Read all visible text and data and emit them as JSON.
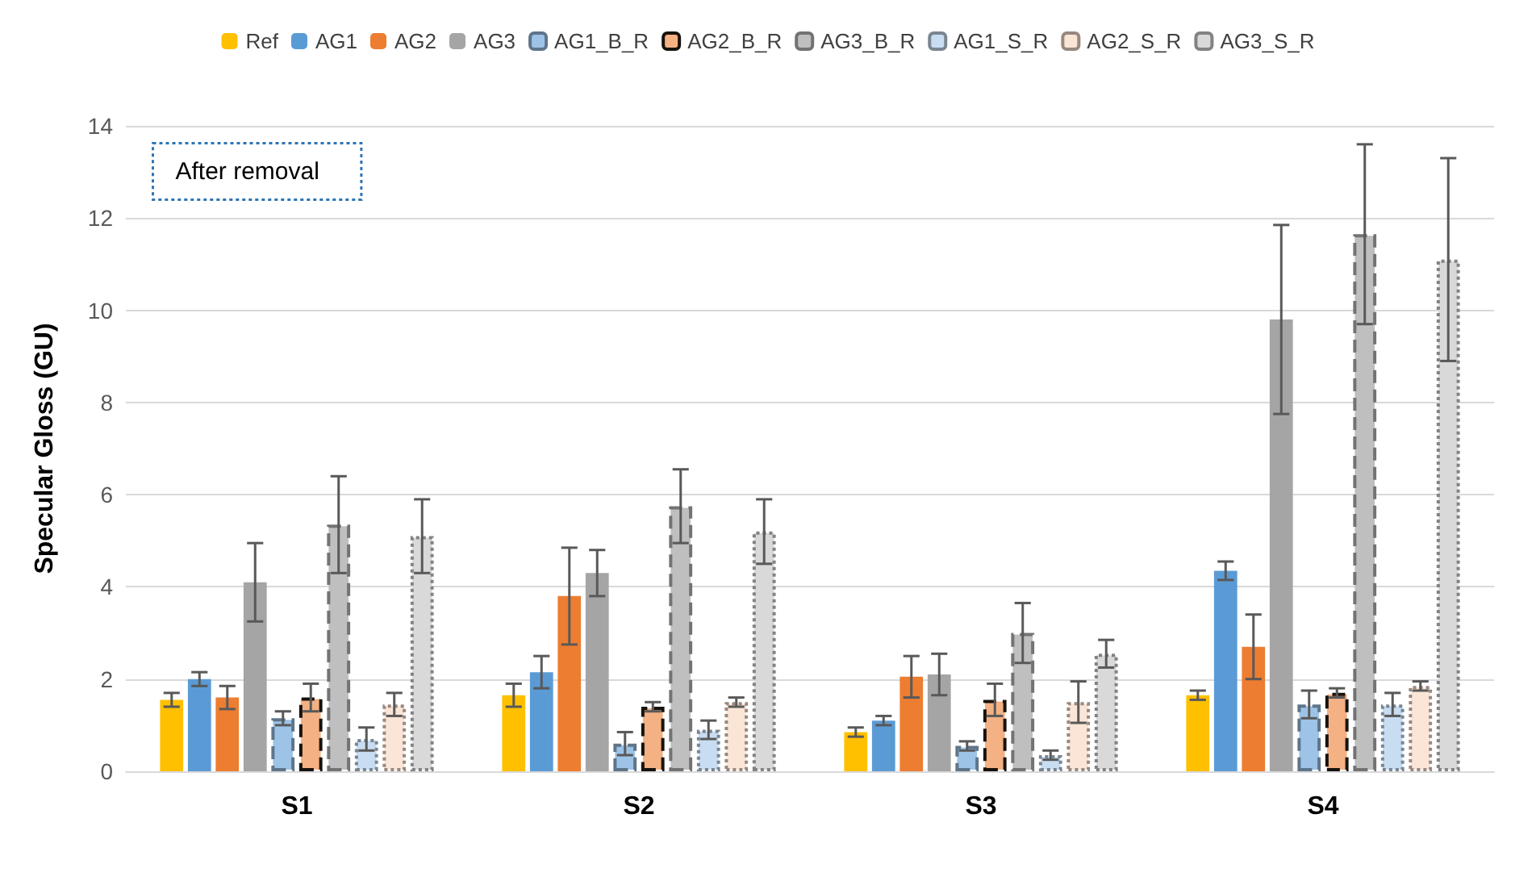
{
  "chart_data": {
    "type": "bar",
    "ylabel": "Specular Gloss (GU)",
    "categories": [
      "S1",
      "S2",
      "S3",
      "S4"
    ],
    "series": [
      {
        "name": "Ref",
        "color": "#ffc000",
        "values": [
          1.55,
          1.65,
          0.85,
          1.65
        ],
        "errors": [
          0.15,
          0.25,
          0.1,
          0.1
        ]
      },
      {
        "name": "AG1",
        "color": "#5b9bd5",
        "values": [
          2.0,
          2.15,
          1.1,
          4.35
        ],
        "errors": [
          0.15,
          0.35,
          0.1,
          0.2
        ]
      },
      {
        "name": "AG2",
        "color": "#ed7d31",
        "values": [
          1.6,
          3.8,
          2.05,
          2.7
        ],
        "errors": [
          0.25,
          1.05,
          0.45,
          0.7
        ]
      },
      {
        "name": "AG3",
        "color": "#a5a5a5",
        "values": [
          4.1,
          4.3,
          2.1,
          9.8
        ],
        "errors": [
          0.85,
          0.5,
          0.45,
          2.05
        ]
      },
      {
        "name": "AG1_B_R",
        "color": "#9dc3e6",
        "line_style": "dashed",
        "values": [
          1.15,
          0.6,
          0.55,
          1.45
        ],
        "errors": [
          0.15,
          0.25,
          0.1,
          0.3
        ]
      },
      {
        "name": "AG2_B_R",
        "color": "#f4b183",
        "line_style": "dashed",
        "values": [
          1.6,
          1.4,
          1.55,
          1.7
        ],
        "errors": [
          0.3,
          0.1,
          0.35,
          0.1
        ]
      },
      {
        "name": "AG3_B_R",
        "color": "#bfbfbf",
        "line_style": "dashed",
        "values": [
          5.35,
          5.75,
          3.0,
          11.65
        ],
        "errors": [
          1.05,
          0.8,
          0.65,
          1.95
        ]
      },
      {
        "name": "AG1_S_R",
        "color": "#c9ddf2",
        "line_style": "dotted",
        "values": [
          0.7,
          0.9,
          0.35,
          1.45
        ],
        "errors": [
          0.25,
          0.2,
          0.1,
          0.25
        ]
      },
      {
        "name": "AG2_S_R",
        "color": "#fbe5d6",
        "line_style": "dotted",
        "values": [
          1.45,
          1.5,
          1.5,
          1.85
        ],
        "errors": [
          0.25,
          0.1,
          0.45,
          0.1
        ]
      },
      {
        "name": "AG3_S_R",
        "color": "#d9d9d9",
        "line_style": "dotted",
        "values": [
          5.1,
          5.2,
          2.55,
          11.1
        ],
        "errors": [
          0.8,
          0.7,
          0.3,
          2.2
        ]
      }
    ],
    "ylim": [
      0,
      14
    ],
    "yticks": [
      0,
      2,
      4,
      6,
      8,
      10,
      12,
      14
    ],
    "grid": "y",
    "legend": "top",
    "annotations": [
      "After removal"
    ]
  }
}
